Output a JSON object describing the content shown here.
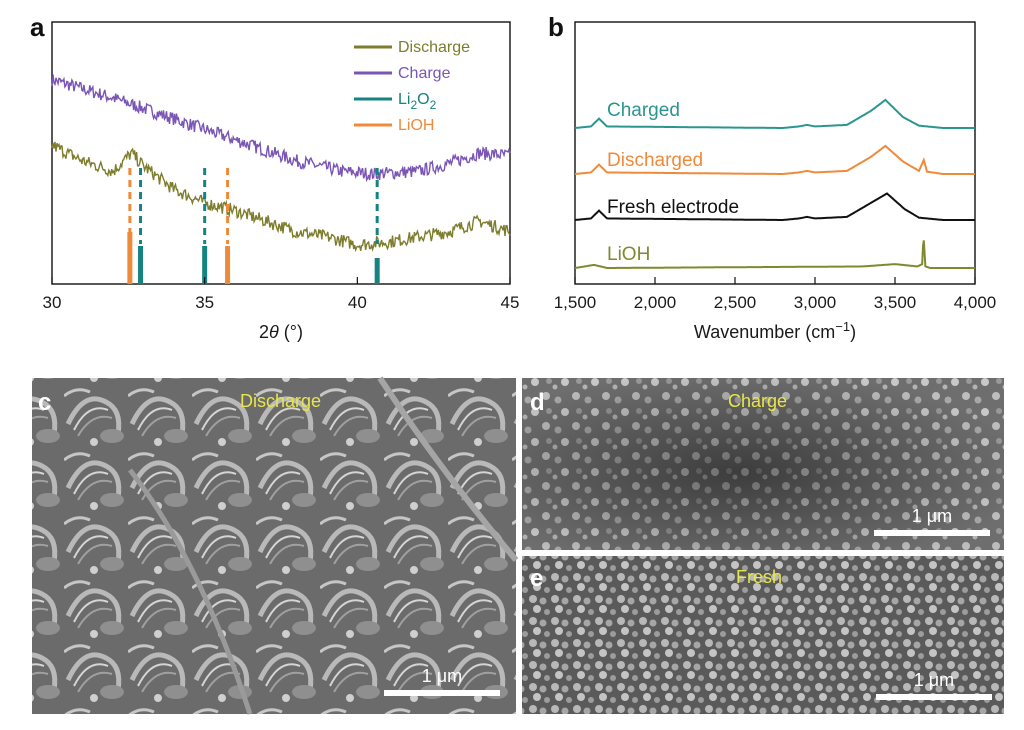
{
  "panels": {
    "a": "a",
    "b": "b",
    "c": "c",
    "d": "d",
    "e": "e"
  },
  "colors": {
    "discharge": "#7d7d2d",
    "charge": "#7a55b4",
    "li2o2": "#15837f",
    "lioh_orange": "#f08a3b",
    "charged_b": "#2a9690",
    "discharged_b": "#f08a3b",
    "fresh_b": "#111111",
    "lioh_b": "#7f8a2e",
    "sem_label": "#e8e64a"
  },
  "sem": {
    "c": {
      "label": "Discharge",
      "scale": "1 μm"
    },
    "d": {
      "label": "Charge",
      "scale": "1 μm"
    },
    "e": {
      "label": "Fresh",
      "scale": "1 μm"
    }
  },
  "chart_data": [
    {
      "type": "line",
      "panel": "a",
      "xlabel": "2θ (°)",
      "ylabel": "",
      "xlim": [
        30,
        45
      ],
      "xticks": [
        "30",
        "35",
        "40",
        "45"
      ],
      "legend": [
        "Discharge",
        "Charge",
        "Li2O2",
        "LiOH"
      ],
      "legend_position": "top-right",
      "series": [
        {
          "name": "Charge",
          "x": [
            30,
            32,
            34,
            36,
            38,
            39.5,
            40.5,
            42,
            43,
            44,
            45
          ],
          "y": [
            0.78,
            0.71,
            0.63,
            0.55,
            0.47,
            0.43,
            0.42,
            0.43,
            0.46,
            0.5,
            0.49
          ]
        },
        {
          "name": "Discharge",
          "x": [
            30,
            31,
            32,
            32.6,
            33,
            34,
            35,
            36,
            37,
            38,
            39,
            40,
            41,
            42,
            43,
            44,
            45
          ],
          "y": [
            0.53,
            0.47,
            0.43,
            0.5,
            0.45,
            0.36,
            0.31,
            0.28,
            0.24,
            0.2,
            0.18,
            0.15,
            0.16,
            0.18,
            0.2,
            0.24,
            0.2
          ]
        }
      ],
      "reference_peaks": [
        {
          "name": "LiOH",
          "x": [
            32.55,
            35.75
          ]
        },
        {
          "name": "Li2O2",
          "x": [
            32.9,
            35.0,
            40.65
          ]
        }
      ]
    },
    {
      "type": "line",
      "panel": "b",
      "xlabel": "Wavenumber (cm−1)",
      "ylabel": "",
      "xlim": [
        1500,
        4000
      ],
      "xticks": [
        "1,500",
        "2,000",
        "2,500",
        "3,000",
        "3,500",
        "4,000"
      ],
      "series": [
        {
          "name": "Charged",
          "baseline": 3,
          "x": [
            1500,
            1600,
            1650,
            1700,
            2800,
            2900,
            2950,
            3000,
            3200,
            3350,
            3440,
            3550,
            3650,
            3800,
            4000
          ],
          "y": [
            0,
            0.02,
            0.12,
            0.02,
            0,
            0.02,
            0.04,
            0.02,
            0.04,
            0.22,
            0.36,
            0.14,
            0.03,
            0,
            0
          ]
        },
        {
          "name": "Discharged",
          "baseline": 2,
          "x": [
            1500,
            1600,
            1650,
            1700,
            2800,
            2900,
            2950,
            3000,
            3200,
            3350,
            3440,
            3550,
            3650,
            3680,
            3700,
            3800,
            4000
          ],
          "y": [
            0,
            0.02,
            0.12,
            0.02,
            0,
            0.02,
            0.04,
            0.02,
            0.04,
            0.22,
            0.36,
            0.16,
            0.04,
            0.18,
            0.03,
            0,
            0
          ]
        },
        {
          "name": "Fresh electrode",
          "baseline": 1,
          "x": [
            1500,
            1600,
            1650,
            1700,
            2800,
            2900,
            2950,
            3000,
            3200,
            3350,
            3450,
            3560,
            3650,
            3800,
            4000
          ],
          "y": [
            0,
            0.02,
            0.12,
            0.02,
            0,
            0.02,
            0.04,
            0.02,
            0.04,
            0.22,
            0.34,
            0.14,
            0.03,
            0,
            0
          ]
        },
        {
          "name": "LiOH",
          "baseline": 0,
          "x": [
            1500,
            1620,
            1700,
            3300,
            3500,
            3640,
            3670,
            3678,
            3690,
            3720,
            4000
          ],
          "y": [
            0,
            0.04,
            0,
            0.02,
            0.05,
            0.02,
            0.05,
            0.42,
            0.02,
            0,
            0
          ]
        }
      ]
    }
  ]
}
